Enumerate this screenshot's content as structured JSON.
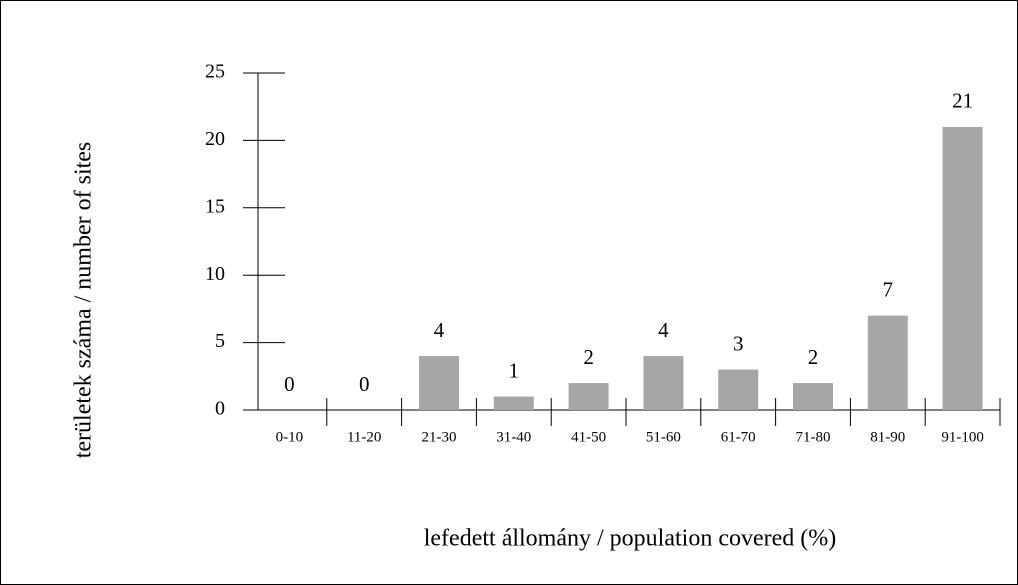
{
  "chart_data": {
    "type": "bar",
    "x_label": "lefedett állomány / population covered (%)",
    "y_label": "területek száma / number of sites",
    "categories": [
      "0-10",
      "11-20",
      "21-30",
      "31-40",
      "41-50",
      "51-60",
      "61-70",
      "71-80",
      "81-90",
      "91-100"
    ],
    "values": [
      0,
      0,
      4,
      1,
      2,
      4,
      3,
      2,
      7,
      21
    ],
    "color": "#a6a6a6",
    "ylim": [
      0,
      25
    ],
    "yticks": [
      0,
      5,
      10,
      15,
      20,
      25
    ],
    "grid": false
  }
}
